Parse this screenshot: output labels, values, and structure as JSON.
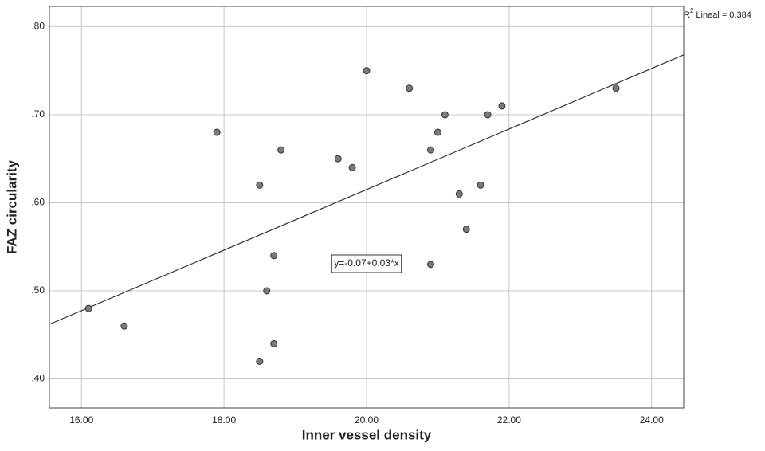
{
  "chart_data": {
    "type": "scatter",
    "x_label": "Inner vessel density",
    "y_label": "FAZ circularity",
    "x": [
      16.1,
      16.6,
      17.9,
      18.5,
      18.8,
      18.7,
      18.6,
      18.7,
      18.5,
      19.6,
      19.8,
      20.0,
      20.6,
      20.9,
      21.0,
      21.1,
      20.9,
      21.3,
      21.4,
      21.6,
      21.7,
      21.9,
      23.5
    ],
    "series": [
      {
        "name": "FAZ circularity",
        "color": "#7a7a7a",
        "values": [
          0.48,
          0.46,
          0.68,
          0.62,
          0.66,
          0.54,
          0.5,
          0.44,
          0.42,
          0.65,
          0.64,
          0.75,
          0.73,
          0.66,
          0.68,
          0.7,
          0.53,
          0.61,
          0.57,
          0.62,
          0.7,
          0.71,
          0.73
        ]
      }
    ],
    "fit_line": {
      "x": [
        15.55,
        24.45
      ],
      "y": [
        0.462,
        0.768
      ],
      "color": "#333333"
    },
    "fit_equation": "y=-0.07+0.03*x",
    "r2_legend": {
      "prefix": "R",
      "superscript": "2",
      "text": "Lineal = 0.384"
    },
    "xlim": [
      15.55,
      24.45
    ],
    "ylim": [
      0.367,
      0.823
    ],
    "xticks": [
      {
        "value": 16,
        "label": "16.00"
      },
      {
        "value": 18,
        "label": "18.00"
      },
      {
        "value": 20,
        "label": "20.00"
      },
      {
        "value": 22,
        "label": "22.00"
      },
      {
        "value": 24,
        "label": "24.00"
      }
    ],
    "yticks": [
      {
        "value": 0.4,
        "label": ".40"
      },
      {
        "value": 0.5,
        "label": ".50"
      },
      {
        "value": 0.6,
        "label": ".60"
      },
      {
        "value": 0.7,
        "label": ".70"
      },
      {
        "value": 0.8,
        "label": ".80"
      }
    ],
    "grid": true
  }
}
